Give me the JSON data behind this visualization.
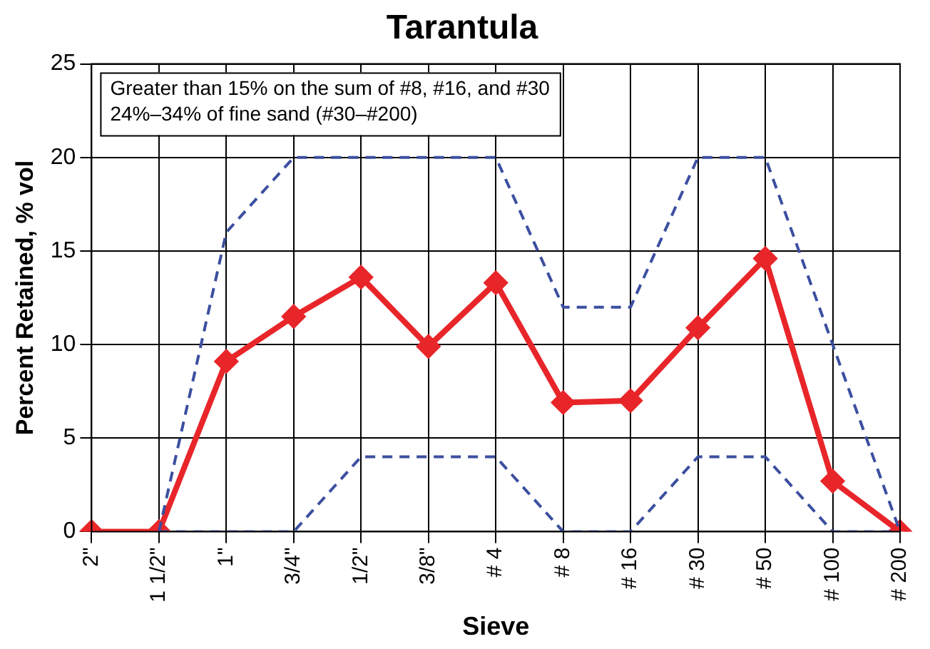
{
  "chart_data": {
    "type": "line",
    "title": "Tarantula",
    "xlabel": "Sieve",
    "ylabel": "Percent Retained, % vol",
    "categories": [
      "2\"",
      "1 1/2\"",
      "1\"",
      "3/4\"",
      "1/2\"",
      "3/8\"",
      "# 4",
      "# 8",
      "# 16",
      "# 30",
      "# 50",
      "# 100",
      "# 200"
    ],
    "series": [
      {
        "color": "#3c4fa0",
        "line_style": "dashed",
        "marker": "none",
        "values": [
          null,
          0,
          16,
          20,
          20,
          20,
          20,
          12,
          12,
          20,
          20,
          10,
          0
        ]
      },
      {
        "color": "#3c4fa0",
        "line_style": "dashed",
        "marker": "none",
        "values": [
          null,
          0,
          0,
          0,
          4,
          4,
          4,
          0,
          0,
          4,
          4,
          0,
          0
        ]
      },
      {
        "color": "#e8262a",
        "line_style": "solid",
        "marker": "diamond",
        "values": [
          0,
          0,
          9.1,
          11.5,
          13.6,
          9.9,
          13.3,
          6.9,
          7.0,
          10.9,
          14.6,
          2.7,
          0
        ]
      }
    ],
    "ylim": [
      0,
      25
    ],
    "yticks": [
      0,
      5,
      10,
      15,
      20,
      25
    ],
    "grid": true,
    "legend": false,
    "annotations": [
      "Greater than 15% on the sum of #8, #16, and #30",
      "24%–34% of fine sand (#30–#200)"
    ]
  }
}
